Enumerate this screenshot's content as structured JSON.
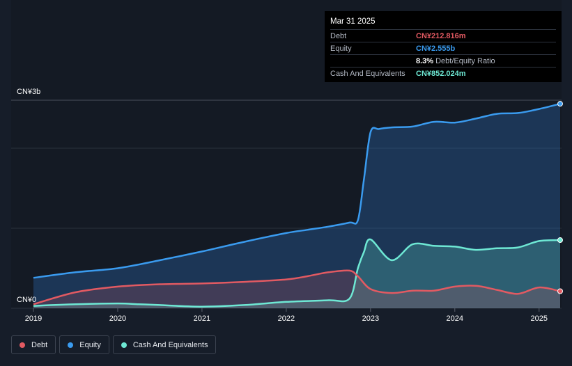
{
  "tooltip": {
    "date": "Mar 31 2025",
    "rows": [
      {
        "label": "Debt",
        "value": "CN¥212.816m",
        "color": "#e25a62"
      },
      {
        "label": "Equity",
        "value": "CN¥2.555b",
        "color": "#3a9bef"
      },
      {
        "label": "",
        "value": "8.3%",
        "extra": "Debt/Equity Ratio",
        "color": "#ffffff"
      },
      {
        "label": "Cash And Equivalents",
        "value": "CN¥852.024m",
        "color": "#6ee8d4"
      }
    ]
  },
  "legend": [
    {
      "label": "Debt",
      "color": "#e25a62"
    },
    {
      "label": "Equity",
      "color": "#3a9bef"
    },
    {
      "label": "Cash And Equivalents",
      "color": "#6ee8d4"
    }
  ],
  "chart_data": {
    "type": "area",
    "y_top_label": "CN¥3b",
    "y_bottom_label": "CN¥0",
    "ylim": [
      0,
      2.6
    ],
    "xlim": [
      2019.0,
      2025.25
    ],
    "x_ticks": [
      "2019",
      "2020",
      "2021",
      "2022",
      "2023",
      "2024",
      "2025"
    ],
    "x_tick_values": [
      2019,
      2020,
      2021,
      2022,
      2023,
      2024,
      2025
    ],
    "gridlines": [
      0,
      1.0,
      2.0,
      2.6
    ],
    "series": [
      {
        "name": "Equity",
        "color": "#3a9bef",
        "x": [
          2019.0,
          2019.5,
          2020.0,
          2020.5,
          2021.0,
          2021.5,
          2022.0,
          2022.25,
          2022.5,
          2022.75,
          2022.85,
          2022.92,
          2023.0,
          2023.1,
          2023.25,
          2023.5,
          2023.75,
          2024.0,
          2024.25,
          2024.5,
          2024.75,
          2025.0,
          2025.25
        ],
        "y": [
          0.38,
          0.45,
          0.5,
          0.6,
          0.71,
          0.83,
          0.94,
          0.98,
          1.02,
          1.07,
          1.1,
          1.6,
          2.2,
          2.24,
          2.26,
          2.27,
          2.33,
          2.32,
          2.37,
          2.43,
          2.44,
          2.49,
          2.555
        ]
      },
      {
        "name": "Cash And Equivalents",
        "color": "#6ee8d4",
        "x": [
          2019.0,
          2019.5,
          2020.0,
          2020.25,
          2020.5,
          2021.0,
          2021.5,
          2022.0,
          2022.5,
          2022.75,
          2022.85,
          2022.92,
          2023.0,
          2023.25,
          2023.5,
          2023.75,
          2024.0,
          2024.25,
          2024.5,
          2024.75,
          2025.0,
          2025.25
        ],
        "y": [
          0.03,
          0.05,
          0.06,
          0.05,
          0.04,
          0.02,
          0.04,
          0.08,
          0.1,
          0.12,
          0.5,
          0.7,
          0.86,
          0.6,
          0.8,
          0.78,
          0.77,
          0.73,
          0.75,
          0.76,
          0.84,
          0.852
        ]
      },
      {
        "name": "Debt",
        "color": "#e25a62",
        "x": [
          2019.0,
          2019.5,
          2020.0,
          2020.5,
          2021.0,
          2021.5,
          2022.0,
          2022.25,
          2022.5,
          2022.75,
          2022.85,
          2023.0,
          2023.25,
          2023.5,
          2023.75,
          2024.0,
          2024.25,
          2024.5,
          2024.75,
          2025.0,
          2025.25
        ],
        "y": [
          0.05,
          0.2,
          0.27,
          0.3,
          0.31,
          0.33,
          0.36,
          0.4,
          0.45,
          0.47,
          0.4,
          0.24,
          0.19,
          0.22,
          0.22,
          0.27,
          0.28,
          0.23,
          0.18,
          0.26,
          0.213
        ]
      }
    ]
  }
}
